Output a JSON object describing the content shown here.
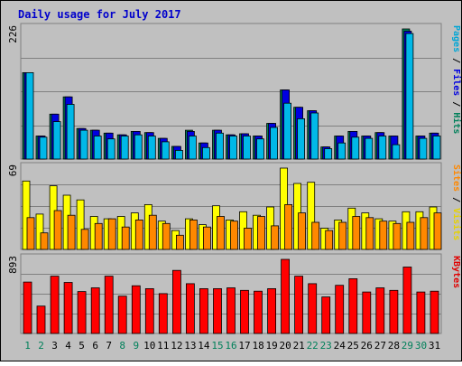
{
  "chart_data": {
    "type": "bar",
    "title": "Daily usage for July 2017",
    "days": [
      "1",
      "2",
      "3",
      "4",
      "5",
      "6",
      "7",
      "8",
      "9",
      "10",
      "11",
      "12",
      "13",
      "14",
      "15",
      "16",
      "17",
      "18",
      "19",
      "20",
      "21",
      "22",
      "23",
      "24",
      "25",
      "26",
      "27",
      "28",
      "29",
      "30",
      "31"
    ],
    "weekend_days": [
      "1",
      "2",
      "8",
      "9",
      "15",
      "16",
      "22",
      "23",
      "29",
      "30"
    ],
    "panels": [
      {
        "id": "hits-files-pages",
        "ymax_label": "226",
        "ymax": 226,
        "side_label": [
          {
            "text": "Pages",
            "color": "#00A6D6"
          },
          {
            "text": " / ",
            "color": "#000000"
          },
          {
            "text": "Files",
            "color": "#0000E0"
          },
          {
            "text": " / ",
            "color": "#000000"
          },
          {
            "text": "Hits",
            "color": "#00805A"
          }
        ],
        "series": [
          {
            "name": "Hits",
            "color": "#00805A",
            "values": [
              150,
              40,
              78,
              108,
              53,
              50,
              45,
              42,
              48,
              46,
              36,
              22,
              50,
              28,
              50,
              42,
              44,
              40,
              62,
              120,
              90,
              84,
              21,
              40,
              48,
              40,
              46,
              40,
              226,
              40,
              45
            ]
          },
          {
            "name": "Files",
            "color": "#0000E0",
            "values": [
              150,
              40,
              78,
              108,
              53,
              50,
              45,
              42,
              48,
              46,
              36,
              22,
              48,
              28,
              50,
              42,
              44,
              40,
              62,
              120,
              90,
              84,
              21,
              40,
              48,
              40,
              46,
              40,
              222,
              40,
              45
            ]
          },
          {
            "name": "Pages",
            "color": "#00B8E8",
            "values": [
              150,
              38,
              65,
              95,
              50,
              40,
              35,
              40,
              42,
              40,
              30,
              15,
              40,
              20,
              45,
              40,
              40,
              35,
              55,
              97,
              70,
              80,
              18,
              28,
              38,
              36,
              40,
              25,
              218,
              36,
              40
            ]
          }
        ]
      },
      {
        "id": "visits-sites",
        "ymax_label": "69",
        "ymax": 69,
        "side_label": [
          {
            "text": "Sites",
            "color": "#FF8800"
          },
          {
            "text": " / ",
            "color": "#000000"
          },
          {
            "text": "Visits",
            "color": "#E6D200"
          }
        ],
        "series": [
          {
            "name": "Visits",
            "color": "#FFFF00",
            "values": [
              58,
              30,
              54,
              46,
              42,
              28,
              26,
              28,
              31,
              38,
              24,
              16,
              26,
              21,
              37,
              25,
              32,
              29,
              36,
              69,
              56,
              57,
              18,
              25,
              35,
              31,
              26,
              24,
              32,
              32,
              36
            ]
          },
          {
            "name": "Sites",
            "color": "#FF8800",
            "values": [
              27,
              14,
              33,
              29,
              17,
              22,
              26,
              19,
              25,
              29,
              22,
              12,
              25,
              19,
              28,
              24,
              18,
              28,
              20,
              38,
              31,
              23,
              16,
              23,
              28,
              27,
              24,
              22,
              23,
              27,
              31
            ]
          }
        ]
      },
      {
        "id": "kbytes",
        "ymax_label": "893",
        "ymax": 893,
        "side_label": [
          {
            "text": "KBytes",
            "color": "#E00000"
          }
        ],
        "series": [
          {
            "name": "KBytes",
            "color": "#FF0000",
            "values": [
              620,
              330,
              690,
              615,
              505,
              550,
              690,
              450,
              575,
              540,
              480,
              760,
              600,
              540,
              540,
              550,
              520,
              510,
              540,
              893,
              690,
              600,
              440,
              580,
              660,
              500,
              550,
              520,
              800,
              500,
              510
            ]
          }
        ]
      }
    ]
  }
}
